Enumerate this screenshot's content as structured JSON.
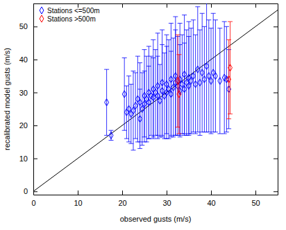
{
  "chart_data": {
    "type": "scatter",
    "x_label": "observed gusts (m/s)",
    "y_label": "recalibrated model gusts (m/s)",
    "xlim": [
      0,
      55
    ],
    "ylim": [
      -1,
      57
    ],
    "xticks": [
      0,
      10,
      20,
      30,
      40,
      50
    ],
    "yticks": [
      0,
      10,
      20,
      30,
      40,
      50
    ],
    "grid": false,
    "legend": "upper left",
    "reference_line": {
      "x": [
        0,
        55
      ],
      "values": [
        0,
        55
      ],
      "color": "#000000"
    },
    "series": [
      {
        "name": "Stations <=500m",
        "color": "#0000ff",
        "marker": "diamond",
        "x": [
          16.5,
          17.5,
          20.5,
          21,
          21.5,
          22,
          22.5,
          23,
          23.5,
          24,
          24,
          24.5,
          25,
          25,
          25.5,
          26,
          26,
          26.5,
          27,
          27,
          27.5,
          28,
          28,
          28.5,
          29,
          29,
          29.5,
          30,
          30,
          30.5,
          31,
          31,
          31.5,
          32,
          32,
          32.5,
          33,
          33,
          33.5,
          34,
          34,
          34.5,
          35,
          35,
          35.5,
          36,
          36.5,
          37,
          37.5,
          38,
          38.5,
          39,
          39.5,
          40,
          40.5,
          41,
          42,
          43,
          43.5,
          44
        ],
        "values": [
          27,
          17,
          29.5,
          24,
          25,
          23.5,
          24.5,
          26,
          28,
          22,
          27,
          25,
          29,
          26.5,
          28,
          27,
          30,
          29,
          31,
          28.5,
          30,
          29,
          32,
          27.5,
          30.5,
          33,
          29,
          32.5,
          30,
          31,
          34,
          29.5,
          31.5,
          33,
          35,
          32,
          30.5,
          34,
          32.5,
          35.5,
          31,
          33,
          34.5,
          32,
          33.5,
          35,
          32.5,
          37,
          33,
          36,
          34,
          38,
          35,
          33.5,
          36,
          35,
          33.5,
          34.5,
          34,
          31
        ],
        "errors": [
          10,
          1.5,
          11,
          8,
          10,
          9,
          12,
          10,
          13,
          9,
          12,
          11,
          14,
          10,
          13,
          11,
          14,
          12,
          15,
          12,
          13,
          12,
          16,
          11,
          14,
          16,
          13,
          15,
          14,
          15,
          17,
          13,
          15,
          16,
          18,
          15,
          14,
          17,
          15,
          18,
          14,
          16,
          17,
          15,
          16,
          17,
          15,
          19,
          16,
          18,
          16,
          20,
          17,
          16,
          18,
          17,
          16,
          17,
          16,
          12
        ]
      },
      {
        "name": "Stations >500m",
        "color": "#ff0000",
        "marker": "diamond",
        "x": [
          32.5,
          32.8,
          44.0,
          44.3
        ],
        "values": [
          33.5,
          29.5,
          34,
          37.5
        ],
        "errors": [
          14,
          12,
          12,
          14
        ]
      }
    ]
  }
}
